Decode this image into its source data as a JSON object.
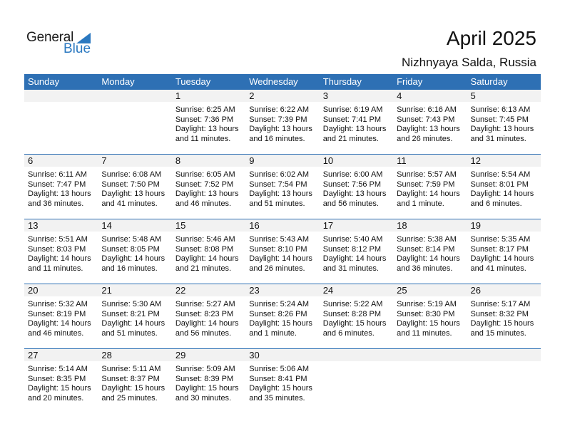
{
  "logo": {
    "text_general": "General",
    "text_blue": "Blue"
  },
  "header": {
    "title": "April 2025",
    "location": "Nizhnyaya Salda, Russia"
  },
  "colors": {
    "accent": "#2e70b4",
    "band": "#f2f2f2"
  },
  "days_of_week": [
    "Sunday",
    "Monday",
    "Tuesday",
    "Wednesday",
    "Thursday",
    "Friday",
    "Saturday"
  ],
  "weeks": [
    [
      null,
      null,
      {
        "day": "1",
        "sunrise": "Sunrise: 6:25 AM",
        "sunset": "Sunset: 7:36 PM",
        "daylight": "Daylight: 13 hours",
        "minutes": "and 11 minutes."
      },
      {
        "day": "2",
        "sunrise": "Sunrise: 6:22 AM",
        "sunset": "Sunset: 7:39 PM",
        "daylight": "Daylight: 13 hours",
        "minutes": "and 16 minutes."
      },
      {
        "day": "3",
        "sunrise": "Sunrise: 6:19 AM",
        "sunset": "Sunset: 7:41 PM",
        "daylight": "Daylight: 13 hours",
        "minutes": "and 21 minutes."
      },
      {
        "day": "4",
        "sunrise": "Sunrise: 6:16 AM",
        "sunset": "Sunset: 7:43 PM",
        "daylight": "Daylight: 13 hours",
        "minutes": "and 26 minutes."
      },
      {
        "day": "5",
        "sunrise": "Sunrise: 6:13 AM",
        "sunset": "Sunset: 7:45 PM",
        "daylight": "Daylight: 13 hours",
        "minutes": "and 31 minutes."
      }
    ],
    [
      {
        "day": "6",
        "sunrise": "Sunrise: 6:11 AM",
        "sunset": "Sunset: 7:47 PM",
        "daylight": "Daylight: 13 hours",
        "minutes": "and 36 minutes."
      },
      {
        "day": "7",
        "sunrise": "Sunrise: 6:08 AM",
        "sunset": "Sunset: 7:50 PM",
        "daylight": "Daylight: 13 hours",
        "minutes": "and 41 minutes."
      },
      {
        "day": "8",
        "sunrise": "Sunrise: 6:05 AM",
        "sunset": "Sunset: 7:52 PM",
        "daylight": "Daylight: 13 hours",
        "minutes": "and 46 minutes."
      },
      {
        "day": "9",
        "sunrise": "Sunrise: 6:02 AM",
        "sunset": "Sunset: 7:54 PM",
        "daylight": "Daylight: 13 hours",
        "minutes": "and 51 minutes."
      },
      {
        "day": "10",
        "sunrise": "Sunrise: 6:00 AM",
        "sunset": "Sunset: 7:56 PM",
        "daylight": "Daylight: 13 hours",
        "minutes": "and 56 minutes."
      },
      {
        "day": "11",
        "sunrise": "Sunrise: 5:57 AM",
        "sunset": "Sunset: 7:59 PM",
        "daylight": "Daylight: 14 hours",
        "minutes": "and 1 minute."
      },
      {
        "day": "12",
        "sunrise": "Sunrise: 5:54 AM",
        "sunset": "Sunset: 8:01 PM",
        "daylight": "Daylight: 14 hours",
        "minutes": "and 6 minutes."
      }
    ],
    [
      {
        "day": "13",
        "sunrise": "Sunrise: 5:51 AM",
        "sunset": "Sunset: 8:03 PM",
        "daylight": "Daylight: 14 hours",
        "minutes": "and 11 minutes."
      },
      {
        "day": "14",
        "sunrise": "Sunrise: 5:48 AM",
        "sunset": "Sunset: 8:05 PM",
        "daylight": "Daylight: 14 hours",
        "minutes": "and 16 minutes."
      },
      {
        "day": "15",
        "sunrise": "Sunrise: 5:46 AM",
        "sunset": "Sunset: 8:08 PM",
        "daylight": "Daylight: 14 hours",
        "minutes": "and 21 minutes."
      },
      {
        "day": "16",
        "sunrise": "Sunrise: 5:43 AM",
        "sunset": "Sunset: 8:10 PM",
        "daylight": "Daylight: 14 hours",
        "minutes": "and 26 minutes."
      },
      {
        "day": "17",
        "sunrise": "Sunrise: 5:40 AM",
        "sunset": "Sunset: 8:12 PM",
        "daylight": "Daylight: 14 hours",
        "minutes": "and 31 minutes."
      },
      {
        "day": "18",
        "sunrise": "Sunrise: 5:38 AM",
        "sunset": "Sunset: 8:14 PM",
        "daylight": "Daylight: 14 hours",
        "minutes": "and 36 minutes."
      },
      {
        "day": "19",
        "sunrise": "Sunrise: 5:35 AM",
        "sunset": "Sunset: 8:17 PM",
        "daylight": "Daylight: 14 hours",
        "minutes": "and 41 minutes."
      }
    ],
    [
      {
        "day": "20",
        "sunrise": "Sunrise: 5:32 AM",
        "sunset": "Sunset: 8:19 PM",
        "daylight": "Daylight: 14 hours",
        "minutes": "and 46 minutes."
      },
      {
        "day": "21",
        "sunrise": "Sunrise: 5:30 AM",
        "sunset": "Sunset: 8:21 PM",
        "daylight": "Daylight: 14 hours",
        "minutes": "and 51 minutes."
      },
      {
        "day": "22",
        "sunrise": "Sunrise: 5:27 AM",
        "sunset": "Sunset: 8:23 PM",
        "daylight": "Daylight: 14 hours",
        "minutes": "and 56 minutes."
      },
      {
        "day": "23",
        "sunrise": "Sunrise: 5:24 AM",
        "sunset": "Sunset: 8:26 PM",
        "daylight": "Daylight: 15 hours",
        "minutes": "and 1 minute."
      },
      {
        "day": "24",
        "sunrise": "Sunrise: 5:22 AM",
        "sunset": "Sunset: 8:28 PM",
        "daylight": "Daylight: 15 hours",
        "minutes": "and 6 minutes."
      },
      {
        "day": "25",
        "sunrise": "Sunrise: 5:19 AM",
        "sunset": "Sunset: 8:30 PM",
        "daylight": "Daylight: 15 hours",
        "minutes": "and 11 minutes."
      },
      {
        "day": "26",
        "sunrise": "Sunrise: 5:17 AM",
        "sunset": "Sunset: 8:32 PM",
        "daylight": "Daylight: 15 hours",
        "minutes": "and 15 minutes."
      }
    ],
    [
      {
        "day": "27",
        "sunrise": "Sunrise: 5:14 AM",
        "sunset": "Sunset: 8:35 PM",
        "daylight": "Daylight: 15 hours",
        "minutes": "and 20 minutes."
      },
      {
        "day": "28",
        "sunrise": "Sunrise: 5:11 AM",
        "sunset": "Sunset: 8:37 PM",
        "daylight": "Daylight: 15 hours",
        "minutes": "and 25 minutes."
      },
      {
        "day": "29",
        "sunrise": "Sunrise: 5:09 AM",
        "sunset": "Sunset: 8:39 PM",
        "daylight": "Daylight: 15 hours",
        "minutes": "and 30 minutes."
      },
      {
        "day": "30",
        "sunrise": "Sunrise: 5:06 AM",
        "sunset": "Sunset: 8:41 PM",
        "daylight": "Daylight: 15 hours",
        "minutes": "and 35 minutes."
      },
      null,
      null,
      null
    ]
  ]
}
